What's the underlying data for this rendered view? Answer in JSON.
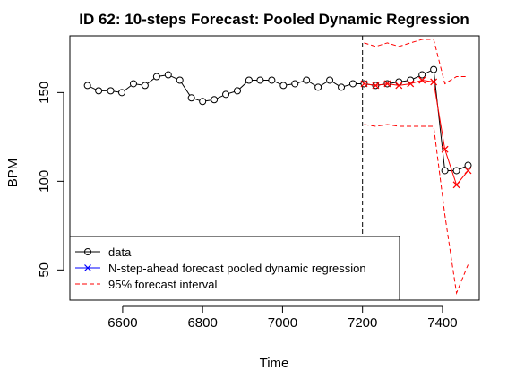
{
  "chart_data": {
    "type": "line",
    "title": "ID 62: 10-steps Forecast: Pooled Dynamic Regression",
    "xlabel": "Time",
    "ylabel": "BPM",
    "xlim": [
      6468,
      7492
    ],
    "ylim": [
      33,
      182
    ],
    "xticks": [
      6600,
      6800,
      7000,
      7200,
      7400
    ],
    "yticks": [
      50,
      100,
      150
    ],
    "grid": false,
    "legend_position": "bottom-left",
    "forecast_origin": 7200,
    "series": [
      {
        "name": "data",
        "color": "#000000",
        "marker": "circle",
        "linestyle": "solid",
        "x": [
          6512,
          6540,
          6570,
          6598,
          6627,
          6656,
          6685,
          6714,
          6743,
          6772,
          6800,
          6829,
          6858,
          6887,
          6916,
          6944,
          6973,
          7002,
          7031,
          7060,
          7089,
          7118,
          7147,
          7176,
          7204,
          7233,
          7262,
          7291,
          7320,
          7349,
          7378,
          7406,
          7435,
          7464
        ],
        "y": [
          154,
          151,
          151,
          150,
          155,
          154,
          159,
          160,
          157,
          147,
          145,
          146,
          149,
          151,
          157,
          157,
          157,
          154,
          155,
          157,
          153,
          157,
          153,
          155,
          155,
          154,
          155,
          156,
          157,
          160,
          163,
          106,
          106,
          109
        ]
      },
      {
        "name": "N-step-ahead forecast pooled dynamic regression",
        "color": "#0000ff",
        "marker": "x",
        "linestyle": "solid",
        "forecast_color": "#ff0000",
        "x": [
          7204,
          7233,
          7262,
          7291,
          7320,
          7349,
          7378,
          7406,
          7435,
          7464
        ],
        "y": [
          155,
          154,
          155,
          154,
          155,
          157,
          156,
          118,
          98,
          106
        ]
      },
      {
        "name": "95% forecast interval",
        "color": "#ff0000",
        "linestyle": "dashed",
        "upper": {
          "x": [
            7204,
            7233,
            7262,
            7291,
            7320,
            7349,
            7378,
            7406,
            7435,
            7464
          ],
          "y": [
            178,
            176,
            178,
            176,
            178,
            180,
            180,
            155,
            159,
            159
          ]
        },
        "lower": {
          "x": [
            7204,
            7233,
            7262,
            7291,
            7320,
            7349,
            7378,
            7406,
            7435,
            7464
          ],
          "y": [
            132,
            131,
            132,
            131,
            131,
            131,
            131,
            81,
            37,
            53
          ]
        }
      }
    ]
  }
}
